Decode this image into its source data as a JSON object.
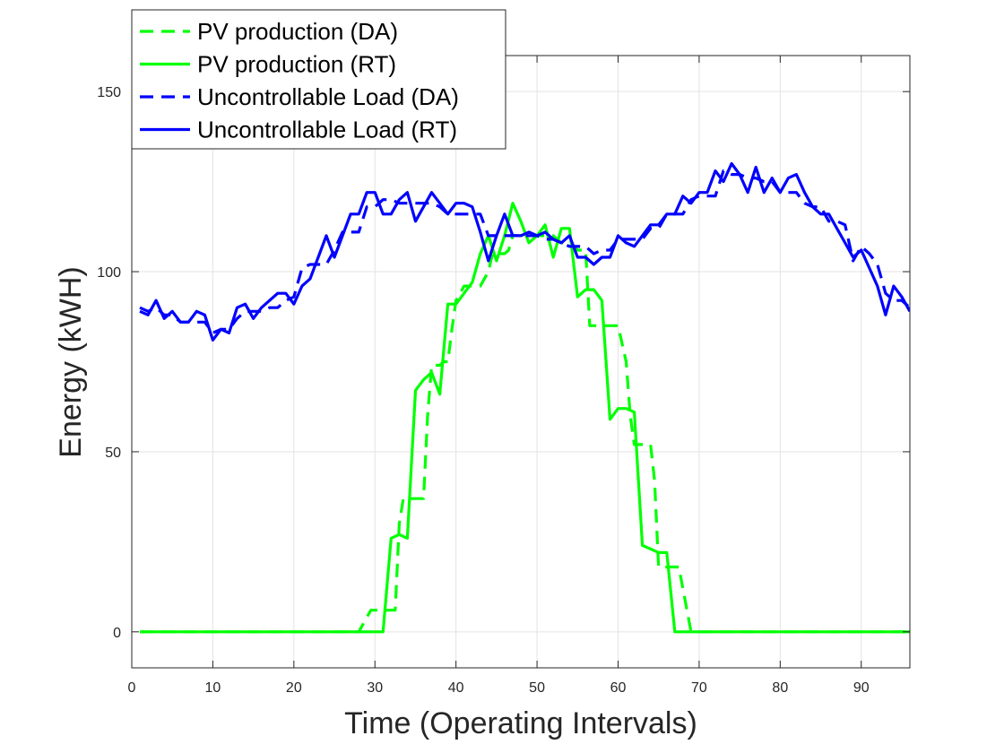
{
  "chart_data": {
    "type": "line",
    "title": "",
    "xlabel": "Time (Operating Intervals)",
    "ylabel": "Energy (kWH)",
    "xlim": [
      0,
      96
    ],
    "ylim": [
      -10,
      160
    ],
    "xticks": [
      0,
      10,
      20,
      30,
      40,
      50,
      60,
      70,
      80,
      90
    ],
    "yticks": [
      0,
      50,
      100,
      150
    ],
    "grid": true,
    "legend_position": "top-left",
    "series": [
      {
        "name": "PV production (DA)",
        "color": "#00ff00",
        "style": "dashed",
        "points": [
          [
            1,
            0
          ],
          [
            28,
            0
          ],
          [
            28.5,
            2
          ],
          [
            29.5,
            6
          ],
          [
            31,
            6
          ],
          [
            32,
            6
          ],
          [
            32.5,
            6
          ],
          [
            33,
            30
          ],
          [
            33.5,
            37
          ],
          [
            35,
            37
          ],
          [
            36,
            37
          ],
          [
            36.5,
            60
          ],
          [
            37,
            74
          ],
          [
            38,
            74
          ],
          [
            38.5,
            75
          ],
          [
            39,
            75
          ],
          [
            39.5,
            84
          ],
          [
            40,
            92
          ],
          [
            41,
            96
          ],
          [
            43,
            96
          ],
          [
            44,
            100
          ],
          [
            44.5,
            105
          ],
          [
            46,
            105
          ],
          [
            46.5,
            106
          ],
          [
            47,
            110
          ],
          [
            48,
            110
          ],
          [
            52,
            110
          ],
          [
            53,
            108
          ],
          [
            54,
            108
          ],
          [
            55,
            106
          ],
          [
            56,
            106
          ],
          [
            56.5,
            85
          ],
          [
            57,
            85
          ],
          [
            58,
            85
          ],
          [
            59,
            85
          ],
          [
            59.5,
            85
          ],
          [
            60,
            85
          ],
          [
            61,
            75
          ],
          [
            61.5,
            60
          ],
          [
            62,
            52
          ],
          [
            63,
            52
          ],
          [
            64,
            52
          ],
          [
            64.5,
            42
          ],
          [
            65,
            18
          ],
          [
            66,
            18
          ],
          [
            67,
            18
          ],
          [
            67.5,
            18
          ],
          [
            68,
            12
          ],
          [
            69,
            0
          ],
          [
            96,
            0
          ]
        ]
      },
      {
        "name": "PV production (RT)",
        "color": "#00ff00",
        "style": "solid",
        "points": [
          [
            1,
            0
          ],
          [
            31,
            0
          ],
          [
            32,
            26
          ],
          [
            33,
            27
          ],
          [
            34,
            26
          ],
          [
            35,
            67
          ],
          [
            36,
            70
          ],
          [
            37,
            72
          ],
          [
            38,
            66
          ],
          [
            39,
            91
          ],
          [
            40,
            91
          ],
          [
            41,
            94
          ],
          [
            42,
            97
          ],
          [
            43,
            105
          ],
          [
            44,
            110
          ],
          [
            45,
            103
          ],
          [
            46,
            110
          ],
          [
            47,
            119
          ],
          [
            48,
            114
          ],
          [
            49,
            108
          ],
          [
            50,
            110
          ],
          [
            51,
            113
          ],
          [
            52,
            104
          ],
          [
            53,
            112
          ],
          [
            54,
            112
          ],
          [
            55,
            93
          ],
          [
            56,
            95
          ],
          [
            57,
            95
          ],
          [
            58,
            92
          ],
          [
            59,
            59
          ],
          [
            60,
            62
          ],
          [
            61,
            62
          ],
          [
            62,
            61
          ],
          [
            63,
            24
          ],
          [
            64,
            23
          ],
          [
            65,
            22
          ],
          [
            66,
            22
          ],
          [
            67,
            0
          ],
          [
            96,
            0
          ]
        ]
      },
      {
        "name": "Uncontrollable Load (DA)",
        "color": "#0000ff",
        "style": "dashed",
        "points": [
          [
            1,
            90
          ],
          [
            2,
            89
          ],
          [
            3,
            90
          ],
          [
            4,
            88
          ],
          [
            5,
            88
          ],
          [
            6,
            86
          ],
          [
            7,
            86
          ],
          [
            8,
            86
          ],
          [
            9,
            86
          ],
          [
            10,
            83
          ],
          [
            11,
            84
          ],
          [
            12,
            84
          ],
          [
            13,
            87
          ],
          [
            14,
            89
          ],
          [
            15,
            89
          ],
          [
            16,
            89
          ],
          [
            17,
            90
          ],
          [
            18,
            90
          ],
          [
            19,
            92
          ],
          [
            20,
            93
          ],
          [
            21,
            101
          ],
          [
            22,
            102
          ],
          [
            23,
            102
          ],
          [
            24,
            102
          ],
          [
            25,
            106
          ],
          [
            26,
            111
          ],
          [
            27,
            111
          ],
          [
            28,
            111
          ],
          [
            29,
            118
          ],
          [
            30,
            118
          ],
          [
            31,
            120
          ],
          [
            32,
            120
          ],
          [
            33,
            119
          ],
          [
            34,
            119
          ],
          [
            35,
            119
          ],
          [
            36,
            119
          ],
          [
            37,
            119
          ],
          [
            38,
            118
          ],
          [
            39,
            116
          ],
          [
            40,
            116
          ],
          [
            41,
            116
          ],
          [
            42,
            116
          ],
          [
            43,
            116
          ],
          [
            44,
            110
          ],
          [
            45,
            110
          ],
          [
            46,
            110
          ],
          [
            47,
            110
          ],
          [
            48,
            110
          ],
          [
            49,
            110
          ],
          [
            50,
            110
          ],
          [
            51,
            109
          ],
          [
            52,
            109
          ],
          [
            53,
            108
          ],
          [
            54,
            107
          ],
          [
            55,
            107
          ],
          [
            56,
            107
          ],
          [
            57,
            105
          ],
          [
            58,
            106
          ],
          [
            59,
            106
          ],
          [
            60,
            109
          ],
          [
            61,
            109
          ],
          [
            62,
            109
          ],
          [
            63,
            109
          ],
          [
            64,
            112
          ],
          [
            65,
            112
          ],
          [
            66,
            116
          ],
          [
            67,
            116
          ],
          [
            68,
            116
          ],
          [
            69,
            120
          ],
          [
            70,
            121
          ],
          [
            71,
            121
          ],
          [
            72,
            121
          ],
          [
            73,
            128
          ],
          [
            74,
            127
          ],
          [
            75,
            127
          ],
          [
            76,
            126
          ],
          [
            77,
            126
          ],
          [
            78,
            125
          ],
          [
            79,
            125
          ],
          [
            80,
            122
          ],
          [
            81,
            122
          ],
          [
            82,
            122
          ],
          [
            83,
            119
          ],
          [
            84,
            118
          ],
          [
            85,
            118
          ],
          [
            86,
            114
          ],
          [
            87,
            114
          ],
          [
            88,
            113
          ],
          [
            89,
            103
          ],
          [
            90,
            107
          ],
          [
            91,
            105
          ],
          [
            92,
            102
          ],
          [
            93,
            94
          ],
          [
            94,
            92
          ],
          [
            95,
            92
          ],
          [
            96,
            90
          ]
        ]
      },
      {
        "name": "Uncontrollable Load (RT)",
        "color": "#0000ff",
        "style": "solid",
        "points": [
          [
            1,
            89
          ],
          [
            2,
            88
          ],
          [
            3,
            92
          ],
          [
            4,
            87
          ],
          [
            5,
            89
          ],
          [
            6,
            86
          ],
          [
            7,
            86
          ],
          [
            8,
            89
          ],
          [
            9,
            88
          ],
          [
            10,
            81
          ],
          [
            11,
            84
          ],
          [
            12,
            83
          ],
          [
            13,
            90
          ],
          [
            14,
            91
          ],
          [
            15,
            87
          ],
          [
            16,
            90
          ],
          [
            17,
            92
          ],
          [
            18,
            94
          ],
          [
            19,
            94
          ],
          [
            20,
            91
          ],
          [
            21,
            96
          ],
          [
            22,
            98
          ],
          [
            23,
            104
          ],
          [
            24,
            110
          ],
          [
            25,
            104
          ],
          [
            26,
            110
          ],
          [
            27,
            116
          ],
          [
            28,
            116
          ],
          [
            29,
            122
          ],
          [
            30,
            122
          ],
          [
            31,
            116
          ],
          [
            32,
            116
          ],
          [
            33,
            120
          ],
          [
            34,
            122
          ],
          [
            35,
            114
          ],
          [
            36,
            118
          ],
          [
            37,
            122
          ],
          [
            38,
            119
          ],
          [
            39,
            116
          ],
          [
            40,
            119
          ],
          [
            41,
            119
          ],
          [
            42,
            118
          ],
          [
            43,
            111
          ],
          [
            44,
            103
          ],
          [
            45,
            110
          ],
          [
            46,
            116
          ],
          [
            47,
            110
          ],
          [
            48,
            110
          ],
          [
            49,
            111
          ],
          [
            50,
            110
          ],
          [
            51,
            111
          ],
          [
            52,
            109
          ],
          [
            53,
            108
          ],
          [
            54,
            110
          ],
          [
            55,
            104
          ],
          [
            56,
            104
          ],
          [
            57,
            102
          ],
          [
            58,
            104
          ],
          [
            59,
            104
          ],
          [
            60,
            110
          ],
          [
            61,
            108
          ],
          [
            62,
            107
          ],
          [
            63,
            110
          ],
          [
            64,
            113
          ],
          [
            65,
            113
          ],
          [
            66,
            116
          ],
          [
            67,
            116
          ],
          [
            68,
            121
          ],
          [
            69,
            119
          ],
          [
            70,
            122
          ],
          [
            71,
            122
          ],
          [
            72,
            128
          ],
          [
            73,
            125
          ],
          [
            74,
            130
          ],
          [
            75,
            127
          ],
          [
            76,
            122
          ],
          [
            77,
            129
          ],
          [
            78,
            122
          ],
          [
            79,
            126
          ],
          [
            80,
            122
          ],
          [
            81,
            126
          ],
          [
            82,
            127
          ],
          [
            83,
            122
          ],
          [
            84,
            118
          ],
          [
            85,
            116
          ],
          [
            86,
            116
          ],
          [
            87,
            112
          ],
          [
            88,
            108
          ],
          [
            89,
            104
          ],
          [
            90,
            106
          ],
          [
            91,
            101
          ],
          [
            92,
            96
          ],
          [
            93,
            88
          ],
          [
            94,
            96
          ],
          [
            95,
            93
          ],
          [
            96,
            89
          ]
        ]
      }
    ]
  }
}
